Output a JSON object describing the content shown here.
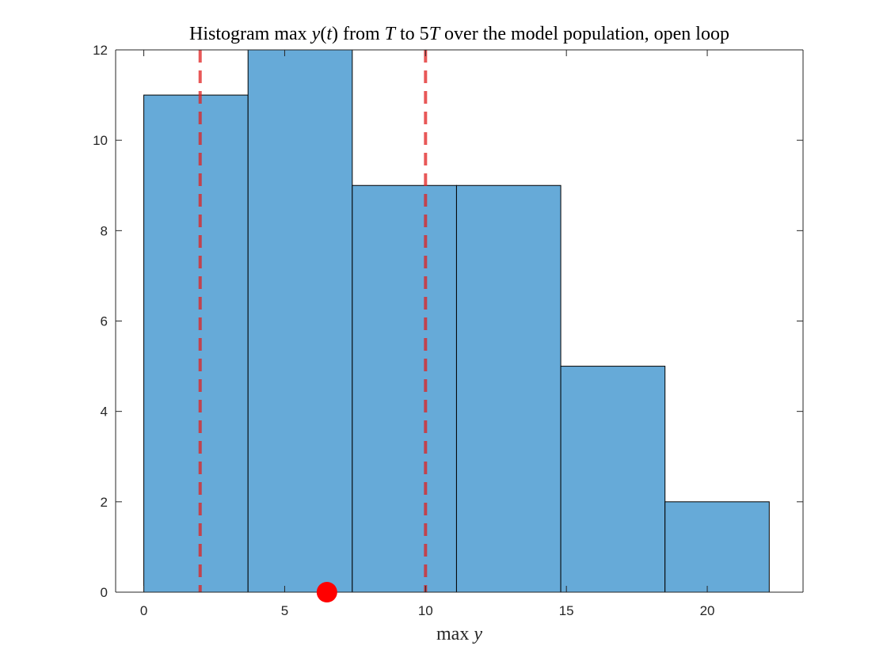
{
  "chart_data": {
    "type": "bar",
    "title": "Histogram max y(t) from T to 5T over the model population, open loop",
    "title_parts": {
      "p1": "Histogram ",
      "p2": "max",
      "p3": " y",
      "p4": "(",
      "p5": "t",
      "p6": ") from ",
      "p7": "T",
      "p8": " to 5",
      "p9": "T",
      "p10": " over the model population, open loop"
    },
    "xlabel": "max y",
    "xlabel_parts": {
      "p1": "max",
      "p2": " y"
    },
    "ylabel": "",
    "xlim": [
      -1,
      23.4
    ],
    "ylim": [
      0,
      12
    ],
    "xticks": [
      0,
      5,
      10,
      15,
      20
    ],
    "yticks": [
      0,
      2,
      4,
      6,
      8,
      10,
      12
    ],
    "bins": [
      {
        "x0": 0.0,
        "x1": 3.7,
        "count": 11
      },
      {
        "x0": 3.7,
        "x1": 7.4,
        "count": 12
      },
      {
        "x0": 7.4,
        "x1": 11.1,
        "count": 9
      },
      {
        "x0": 11.1,
        "x1": 14.8,
        "count": 9
      },
      {
        "x0": 14.8,
        "x1": 18.5,
        "count": 5
      },
      {
        "x0": 18.5,
        "x1": 22.2,
        "count": 2
      }
    ],
    "reference_lines": [
      {
        "x": 2,
        "color": "#e02020",
        "style": "dashed"
      },
      {
        "x": 10,
        "color": "#e02020",
        "style": "dashed"
      }
    ],
    "marker": {
      "x": 6.5,
      "y": 0,
      "color": "#ff0000"
    },
    "grid": false,
    "colors": {
      "bar_fill": "#66aad8",
      "bar_edge": "#000000",
      "axis": "#262626"
    }
  }
}
